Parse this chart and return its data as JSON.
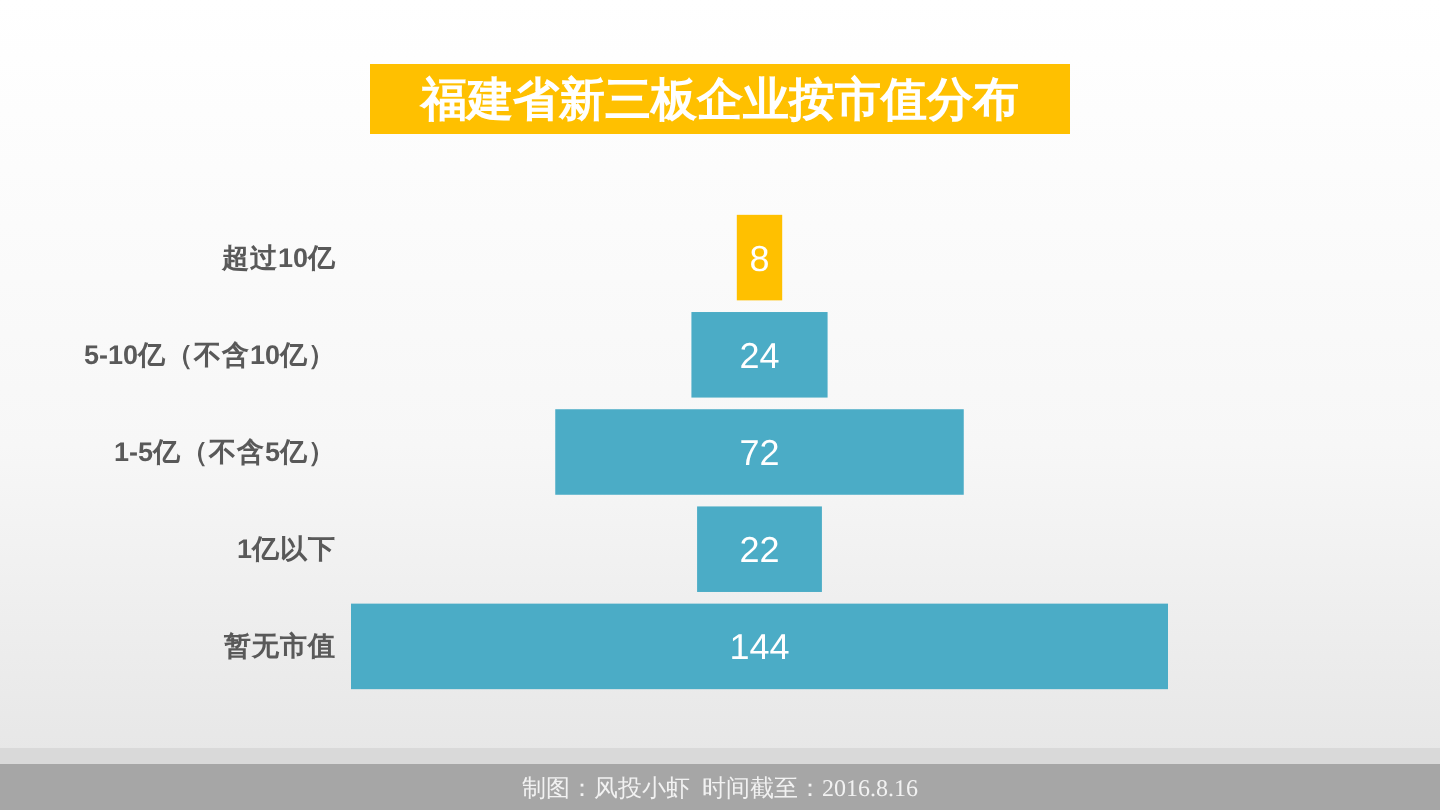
{
  "chart_data": {
    "type": "other",
    "title": "福建省新三板企业按市值分布",
    "categories": [
      "超过10亿",
      "5-10亿（不含10亿）",
      "1-5亿（不含5亿）",
      "1亿以下",
      "暂无市值"
    ],
    "values": [
      8,
      24,
      72,
      22,
      144
    ],
    "colors": [
      "#ffc000",
      "#4bacc6",
      "#4bacc6",
      "#4bacc6",
      "#4bacc6"
    ],
    "data_labels": true,
    "annotations": [
      "制图：风投小虾",
      "时间截至：2016.8.16"
    ]
  }
}
